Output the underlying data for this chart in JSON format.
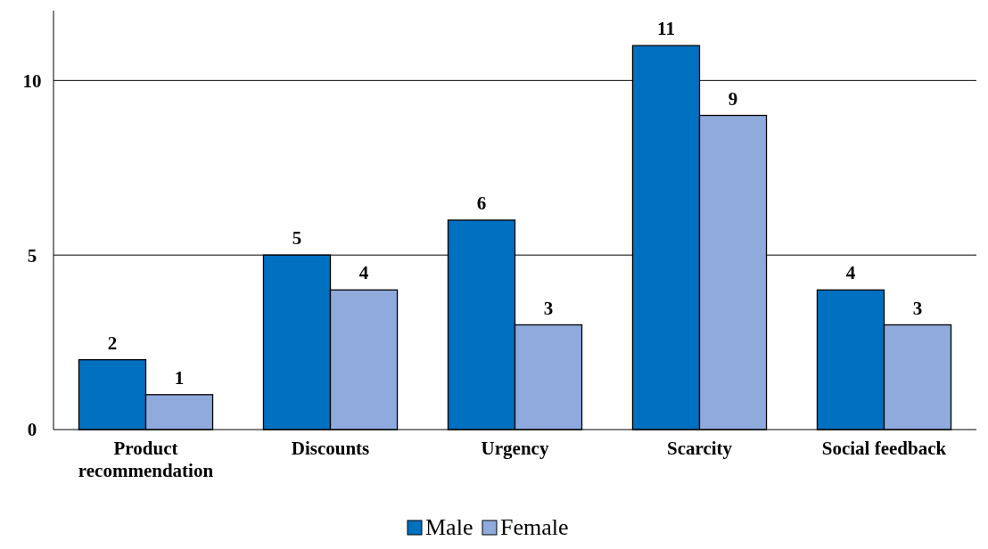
{
  "chart_data": {
    "type": "bar",
    "categories": [
      "Product recommendation",
      "Discounts",
      "Urgency",
      "Scarcity",
      "Social feedback"
    ],
    "series": [
      {
        "name": "Male",
        "color": "#0070c0",
        "values": [
          2,
          5,
          6,
          11,
          4
        ]
      },
      {
        "name": "Female",
        "color": "#8faadc",
        "values": [
          1,
          4,
          3,
          9,
          3
        ]
      }
    ],
    "ylim": [
      0,
      12
    ],
    "yticks": [
      0,
      5,
      10
    ],
    "grid": "y",
    "legend": "bottom",
    "data_labels": true
  }
}
